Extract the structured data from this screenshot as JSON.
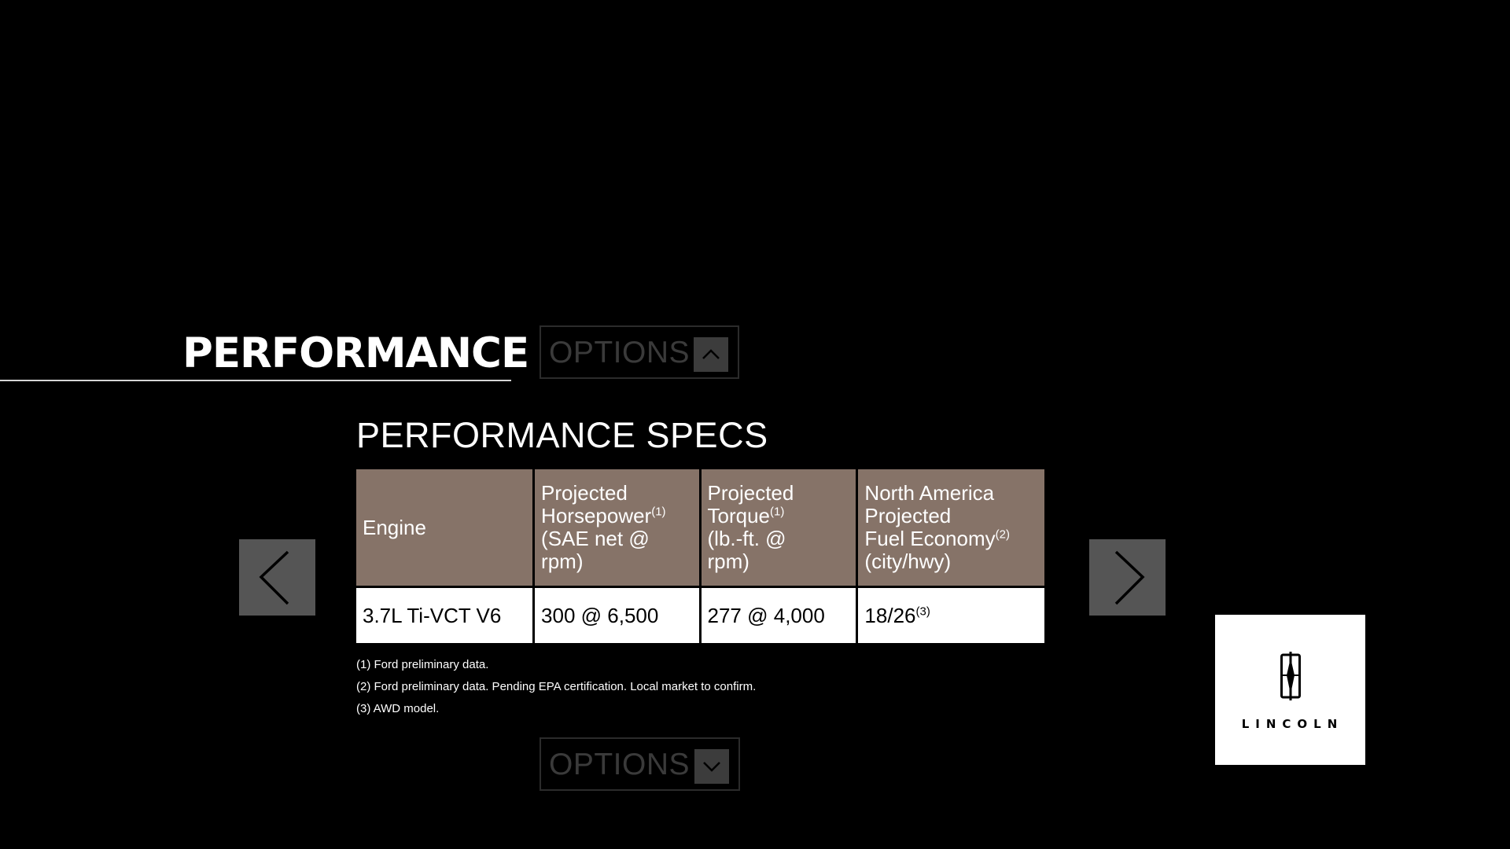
{
  "section": {
    "title": "PERFORMANCE"
  },
  "options_top": {
    "label": "OPTIONS",
    "icon": "chevron-up-icon"
  },
  "options_bottom": {
    "label": "OPTIONS",
    "icon": "chevron-down-icon"
  },
  "specs": {
    "heading": "PERFORMANCE SPECS",
    "headers": [
      {
        "lines": [
          "Engine"
        ],
        "sup": ""
      },
      {
        "lines": [
          "Projected",
          "Horsepower",
          "(SAE net @",
          "rpm)"
        ],
        "sup": "(1)"
      },
      {
        "lines": [
          "Projected",
          "Torque",
          "(lb.-ft. @",
          "rpm)"
        ],
        "sup": "(1)"
      },
      {
        "lines": [
          "North America",
          "Projected",
          "Fuel Economy",
          "(city/hwy)"
        ],
        "sup": "(2)"
      }
    ],
    "row": {
      "engine": "3.7L Ti-VCT V6",
      "horsepower": "300 @ 6,500",
      "torque": "277 @ 4,000",
      "fuel_economy": "18/26",
      "fuel_economy_sup": "(3)"
    }
  },
  "footnotes": [
    "(1) Ford preliminary data.",
    "(2) Ford preliminary data. Pending EPA certification. Local market to confirm.",
    "(3) AWD model."
  ],
  "nav": {
    "prev_icon": "chevron-left-icon",
    "next_icon": "chevron-right-icon"
  },
  "logo": {
    "wordmark": "LINCOLN",
    "icon": "lincoln-star-icon"
  },
  "colors": {
    "background": "#000000",
    "header_cell": "#867368",
    "nav_button": "#555555",
    "options_toggle": "#3c3c3c"
  }
}
